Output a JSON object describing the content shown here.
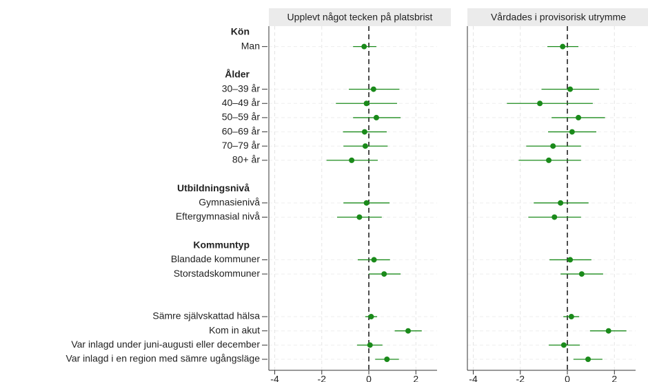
{
  "chart_data": {
    "type": "forest",
    "categories": [
      "Kön",
      "Man",
      null,
      "Ålder",
      "30–39 år",
      "40–49 år",
      "50–59 år",
      "60–69 år",
      "70–79 år",
      "80+ år",
      null,
      "Utbildningsnivå",
      "Gymnasienivå",
      "Eftergymnasial nivå",
      null,
      "Kommuntyp",
      "Blandade kommuner",
      "Storstadskommuner",
      null,
      null,
      "Sämre självskattad hälsa",
      "Kom in akut",
      "Var inlagd under juni-augusti eller december",
      "Var inlagd i en region med sämre ugångsläge"
    ],
    "bold_categories": [
      0,
      3,
      11,
      15
    ],
    "color": "#1a8a1a",
    "xlim": [
      -4.25,
      2.9
    ],
    "xticks": [
      -4,
      -2,
      0,
      2
    ],
    "xline": 0,
    "grid": true,
    "series": [
      {
        "name": "Upplevt något tecken på platsbrist",
        "values": [
          null,
          -0.2,
          null,
          null,
          0.2,
          -0.1,
          0.32,
          -0.18,
          -0.15,
          -0.73,
          null,
          null,
          -0.1,
          -0.4,
          null,
          null,
          0.22,
          0.65,
          null,
          null,
          0.1,
          1.67,
          0.05,
          0.77
        ],
        "ci_low": [
          null,
          -0.67,
          null,
          null,
          -0.85,
          -1.4,
          -0.67,
          -1.1,
          -1.08,
          -1.8,
          null,
          null,
          -1.08,
          -1.35,
          null,
          null,
          -0.47,
          0,
          null,
          null,
          -0.15,
          1.1,
          -0.5,
          0.27
        ],
        "ci_high": [
          null,
          0.32,
          null,
          null,
          1.3,
          1.2,
          1.35,
          0.76,
          0.8,
          0.38,
          null,
          null,
          0.88,
          0.55,
          null,
          null,
          0.9,
          1.35,
          null,
          null,
          0.35,
          2.25,
          0.58,
          1.28
        ]
      },
      {
        "name": "Vårdades i provisorisk utrymme",
        "values": [
          null,
          -0.2,
          null,
          null,
          0.12,
          -1.17,
          0.47,
          0.2,
          -0.61,
          -0.79,
          null,
          null,
          -0.29,
          -0.55,
          null,
          null,
          0.12,
          0.61,
          null,
          null,
          0.17,
          1.75,
          -0.15,
          0.88
        ],
        "ci_low": [
          null,
          -0.85,
          null,
          null,
          -1.1,
          -2.57,
          -0.67,
          -0.82,
          -1.75,
          -2.07,
          null,
          null,
          -1.43,
          -1.66,
          null,
          null,
          -0.76,
          -0.29,
          null,
          null,
          -0.17,
          0.96,
          -0.79,
          0.26
        ],
        "ci_high": [
          null,
          0.47,
          null,
          null,
          1.35,
          1.08,
          1.6,
          1.23,
          0.58,
          0.58,
          null,
          null,
          0.9,
          0.58,
          null,
          null,
          1.02,
          1.52,
          null,
          null,
          0.5,
          2.51,
          0.53,
          1.49
        ]
      }
    ]
  }
}
